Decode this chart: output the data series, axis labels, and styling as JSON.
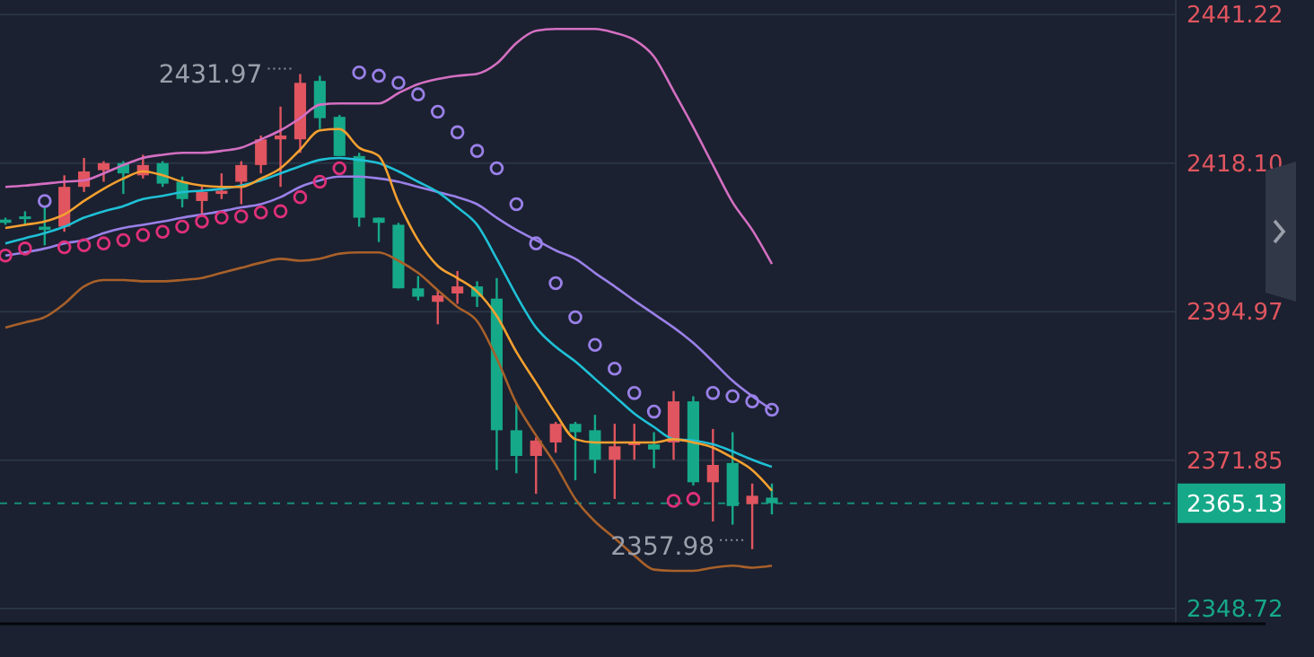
{
  "chart_data": {
    "type": "candlestick",
    "categories": [
      null,
      null,
      null,
      null,
      null,
      null,
      null,
      null,
      null,
      null,
      null,
      null,
      null,
      null,
      null,
      null,
      null,
      null,
      null,
      null,
      null,
      null,
      null,
      null,
      null,
      null,
      null,
      null,
      null,
      null,
      null,
      null,
      null,
      null,
      null,
      null,
      null,
      null,
      null,
      null
    ],
    "ohlc": [
      [
        2409.3,
        2409.6,
        2408.5,
        2408.8
      ],
      [
        2409.8,
        2410.6,
        2408.5,
        2409.6
      ],
      [
        2408.2,
        2411.2,
        2405.3,
        2407.7
      ],
      [
        2408.2,
        2416.2,
        2407.4,
        2414.4
      ],
      [
        2414.4,
        2418.9,
        2413.6,
        2416.8
      ],
      [
        2417.0,
        2418.4,
        2415.2,
        2418.1
      ],
      [
        2418.1,
        2418.4,
        2413.3,
        2416.5
      ],
      [
        2416.2,
        2419.4,
        2415.7,
        2417.8
      ],
      [
        2418.1,
        2418.4,
        2414.4,
        2414.9
      ],
      [
        2415.2,
        2416.0,
        2411.2,
        2412.5
      ],
      [
        2412.2,
        2414.4,
        2409.8,
        2413.6
      ],
      [
        2413.3,
        2416.5,
        2412.5,
        2413.8
      ],
      [
        2415.2,
        2418.4,
        2411.7,
        2417.8
      ],
      [
        2417.8,
        2422.4,
        2416.5,
        2421.8
      ],
      [
        2421.8,
        2426.9,
        2414.4,
        2422.4
      ],
      [
        2421.8,
        2431.97,
        2419.7,
        2430.6
      ],
      [
        2430.9,
        2431.7,
        2423.4,
        2425.1
      ],
      [
        2425.3,
        2425.6,
        2419.2,
        2419.2
      ],
      [
        2419.2,
        2419.7,
        2408.2,
        2409.6
      ],
      [
        2409.6,
        2409.6,
        2405.8,
        2408.8
      ],
      [
        2408.5,
        2408.8,
        2398.6,
        2398.6
      ],
      [
        2398.6,
        2400.5,
        2396.7,
        2397.3
      ],
      [
        2396.5,
        2398.3,
        2393.0,
        2397.5
      ],
      [
        2397.8,
        2401.3,
        2396.2,
        2398.9
      ],
      [
        2398.9,
        2399.7,
        2395.7,
        2397.3
      ],
      [
        2397.0,
        2400.2,
        2370.3,
        2376.5
      ],
      [
        2376.5,
        2380.7,
        2369.8,
        2372.5
      ],
      [
        2372.5,
        2375.4,
        2366.6,
        2374.9
      ],
      [
        2374.6,
        2377.8,
        2373.0,
        2377.5
      ],
      [
        2377.5,
        2377.8,
        2368.7,
        2376.2
      ],
      [
        2376.5,
        2378.9,
        2369.8,
        2371.9
      ],
      [
        2371.9,
        2377.5,
        2365.8,
        2374.0
      ],
      [
        2374.3,
        2377.5,
        2371.9,
        2374.6
      ],
      [
        2374.3,
        2376.2,
        2370.6,
        2373.5
      ],
      [
        2374.6,
        2382.6,
        2371.9,
        2381.0
      ],
      [
        2381.0,
        2381.8,
        2367.9,
        2368.4
      ],
      [
        2368.4,
        2376.7,
        2362.3,
        2371.1
      ],
      [
        2371.4,
        2376.2,
        2361.8,
        2364.7
      ],
      [
        2365.0,
        2368.2,
        2357.98,
        2366.3
      ],
      [
        2366.0,
        2368.2,
        2363.4,
        2365.13
      ]
    ],
    "colors": [
      "#16a989",
      "#16a989",
      "#16a989",
      "#e0555f",
      "#e0555f",
      "#e0555f",
      "#16a989",
      "#e0555f",
      "#16a989",
      "#16a989",
      "#e0555f",
      "#e0555f",
      "#e0555f",
      "#e0555f",
      "#e0555f",
      "#e0555f",
      "#16a989",
      "#16a989",
      "#16a989",
      "#16a989",
      "#16a989",
      "#16a989",
      "#e0555f",
      "#e0555f",
      "#16a989",
      "#16a989",
      "#16a989",
      "#e0555f",
      "#e0555f",
      "#16a989",
      "#16a989",
      "#e0555f",
      "#e0555f",
      "#16a989",
      "#e0555f",
      "#16a989",
      "#e0555f",
      "#16a989",
      "#e0555f",
      "#16a989"
    ],
    "series": [
      {
        "type": "line",
        "color": "#d46fc2",
        "values": [
          2414.4,
          2414.6,
          2414.9,
          2415.2,
          2415.4,
          2416.5,
          2417.8,
          2418.9,
          2419.4,
          2419.7,
          2419.7,
          2420.0,
          2420.5,
          2421.8,
          2423.2,
          2425.1,
          2427.2,
          2427.4,
          2427.4,
          2427.4,
          2429.0,
          2430.4,
          2431.2,
          2431.7,
          2432.0,
          2433.6,
          2436.8,
          2438.7,
          2439.0,
          2439.0,
          2439.0,
          2438.4,
          2437.3,
          2434.7,
          2429.3,
          2423.7,
          2417.8,
          2412.0,
          2407.7,
          2402.4
        ]
      },
      {
        "type": "line",
        "color": "#a8602a",
        "values": [
          2392.5,
          2393.3,
          2394.1,
          2396.2,
          2398.9,
          2399.9,
          2399.9,
          2399.7,
          2399.7,
          2399.9,
          2400.2,
          2401.0,
          2401.8,
          2402.6,
          2403.2,
          2402.9,
          2403.2,
          2404.0,
          2404.2,
          2404.2,
          2402.9,
          2401.0,
          2398.3,
          2395.7,
          2393.5,
          2387.7,
          2380.7,
          2375.7,
          2371.1,
          2365.8,
          2362.3,
          2359.7,
          2357.0,
          2354.8,
          2354.6,
          2354.6,
          2355.1,
          2355.4,
          2355.1,
          2355.4
        ]
      },
      {
        "type": "line",
        "color": "#9a80e8",
        "values": [
          2403.7,
          2404.2,
          2404.8,
          2405.6,
          2406.1,
          2407.2,
          2408.0,
          2408.5,
          2409.0,
          2409.6,
          2410.1,
          2410.6,
          2411.2,
          2411.7,
          2412.8,
          2414.4,
          2415.4,
          2416.0,
          2416.0,
          2415.7,
          2415.2,
          2414.4,
          2413.6,
          2412.8,
          2411.7,
          2409.6,
          2407.7,
          2406.1,
          2404.5,
          2403.2,
          2401.0,
          2398.9,
          2396.7,
          2394.6,
          2392.5,
          2390.1,
          2387.2,
          2384.2,
          2381.8,
          2379.7
        ]
      },
      {
        "type": "line",
        "color": "#1fc0d6",
        "values": [
          2405.6,
          2406.4,
          2407.2,
          2408.2,
          2409.6,
          2410.6,
          2411.4,
          2412.5,
          2413.0,
          2413.6,
          2413.8,
          2414.1,
          2414.6,
          2415.4,
          2416.5,
          2417.6,
          2418.6,
          2418.9,
          2418.6,
          2418.1,
          2416.8,
          2415.2,
          2413.6,
          2411.2,
          2408.5,
          2403.2,
          2397.5,
          2392.5,
          2389.5,
          2387.2,
          2384.5,
          2381.8,
          2379.1,
          2377.0,
          2375.1,
          2374.9,
          2374.3,
          2373.2,
          2371.9,
          2370.8
        ]
      },
      {
        "type": "line",
        "color": "#f5a030",
        "values": [
          2408.0,
          2408.5,
          2409.0,
          2410.1,
          2412.2,
          2414.1,
          2415.7,
          2416.8,
          2416.2,
          2415.2,
          2414.6,
          2414.4,
          2414.4,
          2415.7,
          2417.3,
          2420.2,
          2423.2,
          2423.4,
          2420.5,
          2419.2,
          2412.0,
          2406.1,
          2402.1,
          2400.2,
          2398.1,
          2394.3,
          2388.7,
          2383.9,
          2379.1,
          2375.1,
          2374.6,
          2374.6,
          2374.6,
          2374.6,
          2375.1,
          2374.6,
          2373.8,
          2372.2,
          2370.3,
          2367.1
        ]
      },
      {
        "type": "scatter",
        "marker": "circle",
        "color": "#e0307a",
        "values": [
          2403.7,
          2404.8,
          null,
          2405.0,
          2405.3,
          2405.6,
          2406.1,
          2406.9,
          2407.4,
          2408.2,
          2409.0,
          2409.6,
          2409.8,
          2410.4,
          2410.6,
          2412.8,
          2415.2,
          2417.3,
          null,
          null,
          null,
          null,
          null,
          null,
          null,
          null,
          null,
          null,
          null,
          null,
          null,
          null,
          null,
          null,
          2365.5,
          2365.8,
          null,
          null,
          null,
          null
        ]
      },
      {
        "type": "scatter",
        "marker": "circle",
        "color": "#9a80e8",
        "values": [
          null,
          null,
          2412.2,
          null,
          null,
          null,
          null,
          null,
          null,
          null,
          null,
          null,
          null,
          null,
          null,
          null,
          null,
          null,
          2432.2,
          2431.7,
          2430.6,
          2428.8,
          2426.1,
          2422.9,
          2420.0,
          2417.3,
          2411.7,
          2405.6,
          2399.4,
          2394.1,
          2389.8,
          2386.1,
          2382.3,
          2379.4,
          null,
          null,
          2382.3,
          2381.8,
          2381.0,
          2379.7
        ]
      }
    ],
    "ylim": [
      2346.5,
      2443.5
    ],
    "yticks": [
      2441.22,
      {
        "value": 2418.1,
        "label": "2418.10"
      },
      2394.97,
      2371.85,
      2348.72
    ],
    "grid": "y",
    "line_style": "solid",
    "ref_lines": [
      {
        "axis": "y",
        "value": 2365.13,
        "label": "2365.13",
        "color": "#16a989",
        "line_style": "dashed"
      }
    ],
    "annotations": [
      "2431.97",
      "2357.98"
    ]
  }
}
